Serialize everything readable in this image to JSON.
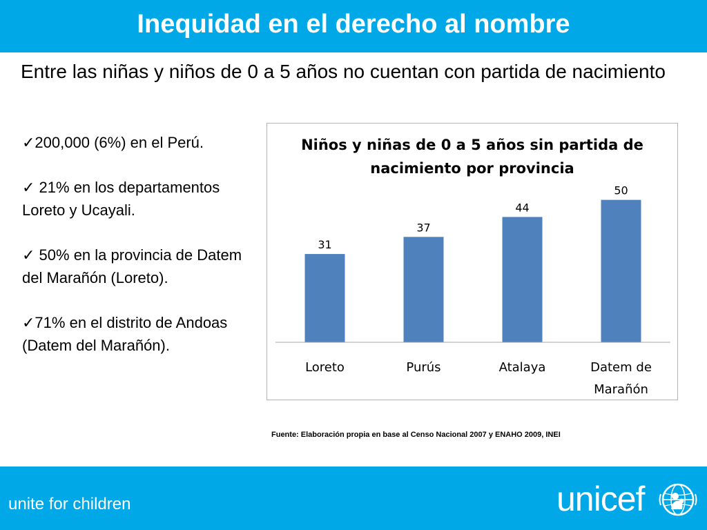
{
  "title": "Inequidad en el derecho al nombre",
  "subtitle": "Entre las niñas y niños de 0 a 5 años no cuentan con partida de nacimiento",
  "bullets": [
    "✓200,000 (6%) en el Perú.",
    "✓ 21% en los departamentos Loreto y Ucayali.",
    "✓ 50% en la provincia de Datem del Marañón (Loreto).",
    "✓71% en el distrito de Andoas (Datem del Marañón)."
  ],
  "source_note": "Fuente: Elaboración propia en base al Censo Nacional 2007 y  ENAHO 2009, INEI",
  "footer": {
    "tagline": "unite for children",
    "logo_text": "unicef"
  },
  "colors": {
    "header_bg": "#00a8e8",
    "bar": "#4f81bd"
  },
  "chart_data": {
    "type": "bar",
    "title": "Niños y niñas de 0 a 5 años sin partida de nacimiento por provincia",
    "title_lines": [
      "Niños y niñas de 0 a 5 años sin partida de",
      "nacimiento por provincia"
    ],
    "categories": [
      "Loreto",
      "Purús",
      "Atalaya",
      "Datem de Marañón"
    ],
    "category_lines": [
      [
        "Loreto"
      ],
      [
        "Purús"
      ],
      [
        "Atalaya"
      ],
      [
        "Datem de",
        "Marañón"
      ]
    ],
    "values": [
      31,
      37,
      44,
      50
    ],
    "data_labels": true,
    "ylim": [
      0,
      55
    ],
    "grid": false,
    "legend": "none"
  }
}
